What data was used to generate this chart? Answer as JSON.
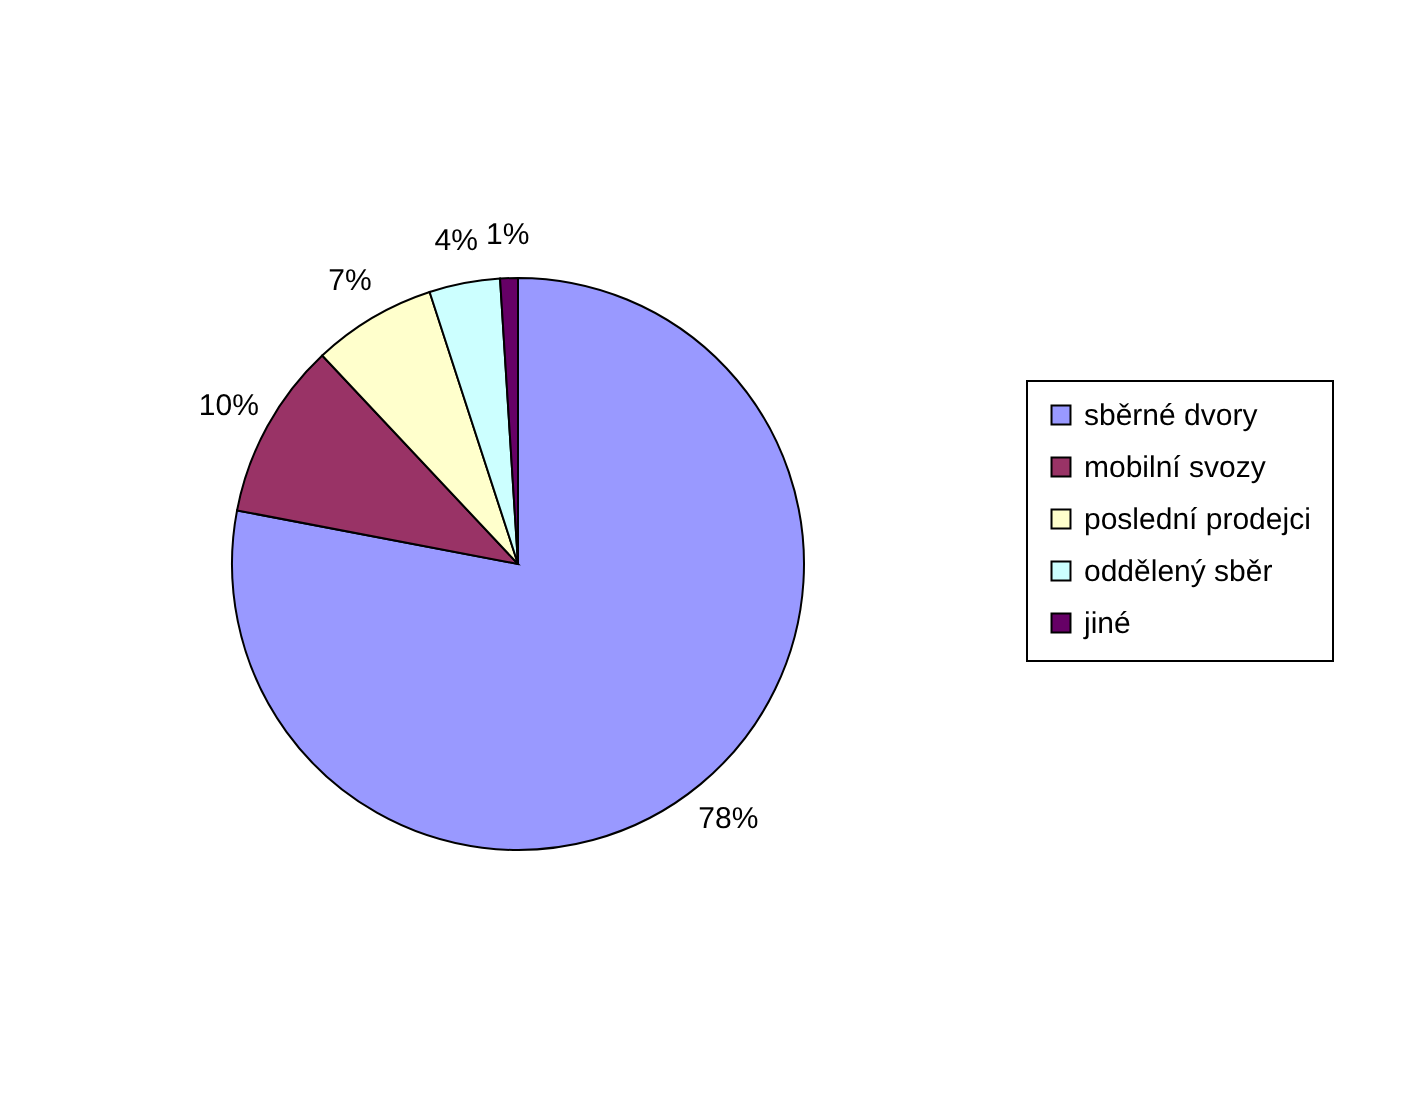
{
  "chart_data": {
    "type": "pie",
    "categories": [
      "sběrné dvory",
      "mobilní svozy",
      "poslední prodejci",
      "oddělený sběr",
      "jiné"
    ],
    "values": [
      78,
      10,
      7,
      4,
      1
    ],
    "colors": [
      "#9999ff",
      "#993366",
      "#ffffcc",
      "#ccffff",
      "#660066"
    ],
    "value_labels": [
      "78%",
      "10%",
      "7%",
      "4%",
      "1%"
    ],
    "legend": "right"
  }
}
